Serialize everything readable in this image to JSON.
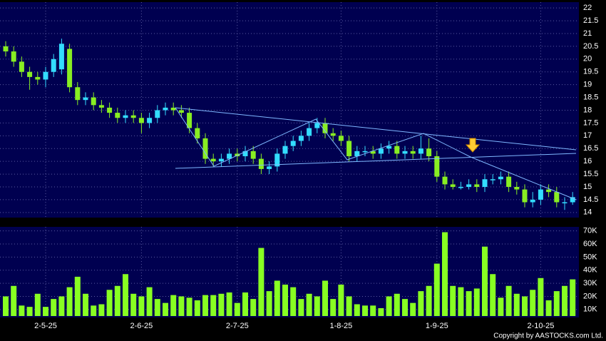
{
  "chart_data": {
    "type": "candlestick",
    "open": [
      20.5,
      20.3,
      19.9,
      19.5,
      19.3,
      19.2,
      19.5,
      19.6,
      20.4,
      18.9,
      18.4,
      18.5,
      18.2,
      18.1,
      17.9,
      17.7,
      17.8,
      17.7,
      17.5,
      17.7,
      18.0,
      18.1,
      18.0,
      17.9,
      17.3,
      16.9,
      16.1,
      16.0,
      16.1,
      16.3,
      16.2,
      16.4,
      16.1,
      15.7,
      15.8,
      16.3,
      16.6,
      16.8,
      17.0,
      17.3,
      17.5,
      17.1,
      17.0,
      16.8,
      16.2,
      16.4,
      16.4,
      16.3,
      16.5,
      16.6,
      16.3,
      16.4,
      16.3,
      16.5,
      16.2,
      15.4,
      15.1,
      15.0,
      15.0,
      15.1,
      15.0,
      15.3,
      15.3,
      15.4,
      15.0,
      14.9,
      14.4,
      14.5,
      14.9,
      14.8,
      14.4,
      14.4
    ],
    "high": [
      20.7,
      20.5,
      20.1,
      19.7,
      19.5,
      19.7,
      20.2,
      20.8,
      20.6,
      19.1,
      18.7,
      18.7,
      18.4,
      18.3,
      18.1,
      18.0,
      18.0,
      17.9,
      17.9,
      18.2,
      18.3,
      18.3,
      18.2,
      18.1,
      17.5,
      17.1,
      16.3,
      16.3,
      16.5,
      16.5,
      16.6,
      16.6,
      16.3,
      16.0,
      16.5,
      16.8,
      17.0,
      17.2,
      17.5,
      17.7,
      17.7,
      17.3,
      17.2,
      17.0,
      16.6,
      16.6,
      16.6,
      16.7,
      16.8,
      16.8,
      16.6,
      16.6,
      17.0,
      16.9,
      16.4,
      15.6,
      15.3,
      15.2,
      15.3,
      15.3,
      15.5,
      15.5,
      15.6,
      15.6,
      15.2,
      15.1,
      14.8,
      15.1,
      15.1,
      15.0,
      14.6,
      14.8
    ],
    "low": [
      20.1,
      19.7,
      19.3,
      18.8,
      19.0,
      18.9,
      19.3,
      19.4,
      18.7,
      18.2,
      18.2,
      18.0,
      17.9,
      17.7,
      17.5,
      17.5,
      17.5,
      17.1,
      17.3,
      17.5,
      17.8,
      17.8,
      17.7,
      17.1,
      16.7,
      15.9,
      15.8,
      15.8,
      15.9,
      16.0,
      16.0,
      15.9,
      15.5,
      15.5,
      15.6,
      16.1,
      16.4,
      16.6,
      16.8,
      17.1,
      16.9,
      16.8,
      16.6,
      16.0,
      16.0,
      16.2,
      16.1,
      16.1,
      16.3,
      16.1,
      16.1,
      16.1,
      16.1,
      16.0,
      15.2,
      14.9,
      14.9,
      14.9,
      14.9,
      14.8,
      14.8,
      15.1,
      15.1,
      14.8,
      14.7,
      14.2,
      14.2,
      14.3,
      14.6,
      14.2,
      14.1,
      14.3
    ],
    "close": [
      20.3,
      19.9,
      19.5,
      19.3,
      19.2,
      19.5,
      20.0,
      20.6,
      18.9,
      18.4,
      18.5,
      18.2,
      18.1,
      17.9,
      17.7,
      17.8,
      17.7,
      17.5,
      17.7,
      18.0,
      18.1,
      18.0,
      17.9,
      17.3,
      16.9,
      16.1,
      16.0,
      16.1,
      16.3,
      16.2,
      16.4,
      16.1,
      15.7,
      15.8,
      16.3,
      16.6,
      16.8,
      17.0,
      17.3,
      17.5,
      17.1,
      17.0,
      16.8,
      16.2,
      16.4,
      16.4,
      16.3,
      16.5,
      16.6,
      16.3,
      16.4,
      16.3,
      16.5,
      16.2,
      15.4,
      15.1,
      15.0,
      15.0,
      15.1,
      15.0,
      15.3,
      15.3,
      15.4,
      15.0,
      14.9,
      14.4,
      14.5,
      14.9,
      14.8,
      14.4,
      14.4,
      14.6
    ],
    "volume": [
      20000,
      28000,
      13000,
      12000,
      22000,
      12000,
      18000,
      20000,
      27000,
      35000,
      22000,
      13000,
      14000,
      25000,
      28000,
      37000,
      22000,
      20000,
      27000,
      18000,
      15000,
      21000,
      20000,
      19000,
      17000,
      21000,
      21000,
      22000,
      23000,
      15000,
      23000,
      18000,
      57000,
      24000,
      32000,
      29000,
      27000,
      18000,
      22000,
      20000,
      32000,
      18000,
      29000,
      20000,
      14000,
      13000,
      13000,
      11000,
      20000,
      22000,
      18000,
      15000,
      24000,
      28000,
      45000,
      69000,
      28000,
      27000,
      24000,
      26000,
      58000,
      37000,
      19000,
      28000,
      22000,
      20000,
      25000,
      34000,
      17000,
      24000,
      28000,
      33000
    ],
    "up_color": "#33ddff",
    "down_color": "#88ee22",
    "volume_color": "#88ff22",
    "ylim": [
      13.8,
      22.2
    ],
    "yticks": [
      14,
      14.5,
      15,
      15.5,
      16,
      16.5,
      17,
      17.5,
      18,
      18.5,
      19,
      19.5,
      20,
      20.5,
      21,
      21.5,
      22
    ],
    "volume_ylim": [
      5000,
      72000
    ],
    "volume_ticks": [
      {
        "value": 10000,
        "label": "10K"
      },
      {
        "value": 20000,
        "label": "20K"
      },
      {
        "value": 30000,
        "label": "30K"
      },
      {
        "value": 40000,
        "label": "40K"
      },
      {
        "value": 50000,
        "label": "50K"
      },
      {
        "value": 60000,
        "label": "60K"
      },
      {
        "value": 70000,
        "label": "70K"
      }
    ],
    "xticks": [
      {
        "value": 5,
        "label": "2-5-25"
      },
      {
        "value": 17,
        "label": "2-6-25"
      },
      {
        "value": 29,
        "label": "2-7-25"
      },
      {
        "value": 42,
        "label": "1-8-25"
      },
      {
        "value": 54,
        "label": "1-9-25"
      },
      {
        "value": 67,
        "label": "2-10-25"
      }
    ],
    "grid": true,
    "copyright": "Copyright by AASTOCKS.com Ltd."
  }
}
